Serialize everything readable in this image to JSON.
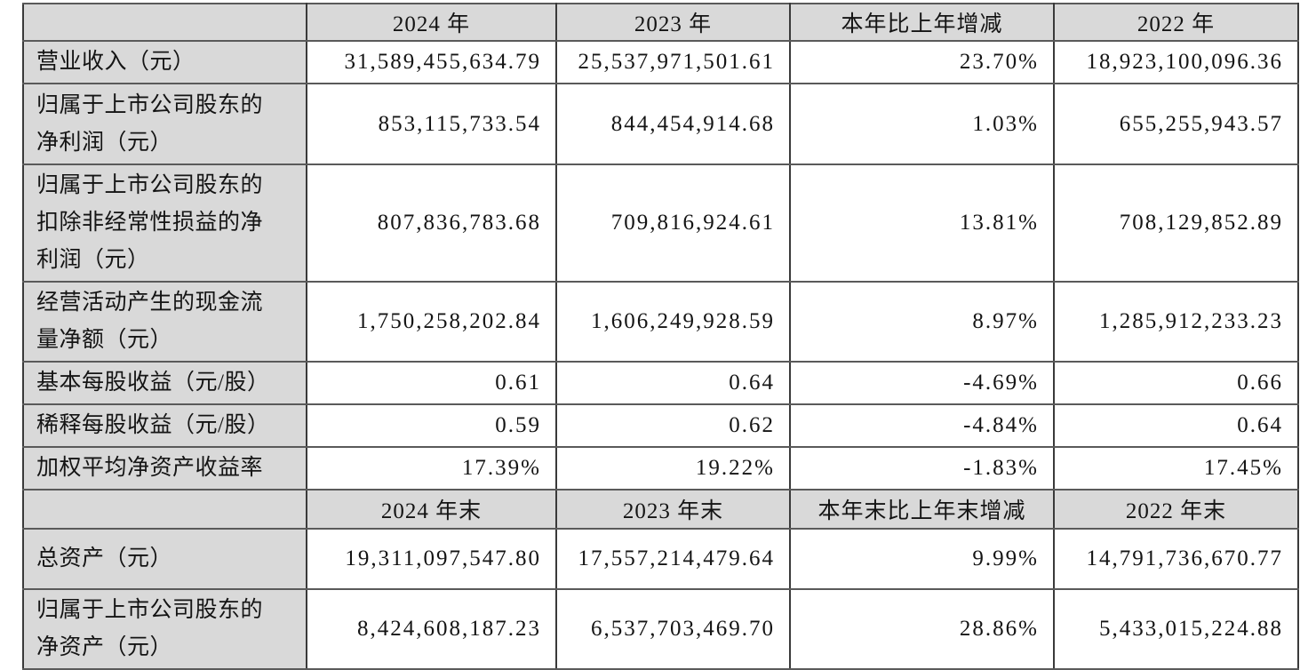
{
  "colors": {
    "cell_shading": "#d9d9d9",
    "border": "#4f4f4f",
    "text": "#141414",
    "data_cell_bg": "#ffffff"
  },
  "table": {
    "header_annual": [
      "",
      "2024 年",
      "2023 年",
      "本年比上年增减",
      "2022 年"
    ],
    "annual_rows": [
      {
        "label": "营业收入（元）",
        "y2024": "31,589,455,634.79",
        "y2023": "25,537,971,501.61",
        "change": "23.70%",
        "y2022": "18,923,100,096.36"
      },
      {
        "label": "归属于上市公司股东的净利润（元）",
        "y2024": "853,115,733.54",
        "y2023": "844,454,914.68",
        "change": "1.03%",
        "y2022": "655,255,943.57"
      },
      {
        "label": "归属于上市公司股东的扣除非经常性损益的净利润（元）",
        "y2024": "807,836,783.68",
        "y2023": "709,816,924.61",
        "change": "13.81%",
        "y2022": "708,129,852.89"
      },
      {
        "label": "经营活动产生的现金流量净额（元）",
        "y2024": "1,750,258,202.84",
        "y2023": "1,606,249,928.59",
        "change": "8.97%",
        "y2022": "1,285,912,233.23"
      },
      {
        "label": "基本每股收益（元/股）",
        "y2024": "0.61",
        "y2023": "0.64",
        "change": "-4.69%",
        "y2022": "0.66"
      },
      {
        "label": "稀释每股收益（元/股）",
        "y2024": "0.59",
        "y2023": "0.62",
        "change": "-4.84%",
        "y2022": "0.64"
      },
      {
        "label": "加权平均净资产收益率",
        "y2024": "17.39%",
        "y2023": "19.22%",
        "change": "-1.83%",
        "y2022": "17.45%"
      }
    ],
    "header_yearend": [
      "",
      "2024 年末",
      "2023 年末",
      "本年末比上年末增减",
      "2022 年末"
    ],
    "yearend_rows": [
      {
        "label": "总资产（元）",
        "y2024": "19,311,097,547.80",
        "y2023": "17,557,214,479.64",
        "change": "9.99%",
        "y2022": "14,791,736,670.77"
      },
      {
        "label": "归属于上市公司股东的净资产（元）",
        "y2024": "8,424,608,187.23",
        "y2023": "6,537,703,469.70",
        "change": "28.86%",
        "y2022": "5,433,015,224.88"
      }
    ]
  }
}
